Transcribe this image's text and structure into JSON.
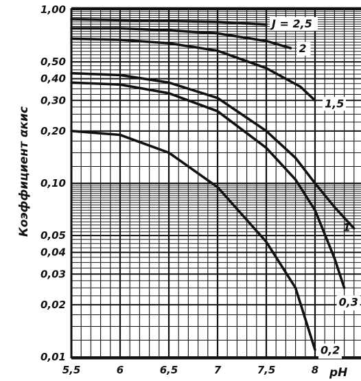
{
  "chart_data": {
    "type": "line",
    "title": "",
    "xlabel": "pH",
    "ylabel": "Коэффициент αкис",
    "xlim": [
      5.5,
      8.5
    ],
    "ylim": [
      0.01,
      1.0
    ],
    "y_scale": "log",
    "grid": true,
    "x_ticks": [
      5.5,
      6,
      6.5,
      7,
      7.5,
      8
    ],
    "x_tick_labels": [
      "5,5",
      "6",
      "6,5",
      "7",
      "7,5",
      "8"
    ],
    "y_ticks": [
      0.01,
      0.02,
      0.03,
      0.04,
      0.05,
      0.1,
      0.2,
      0.3,
      0.4,
      0.5,
      1.0
    ],
    "y_tick_labels": [
      "0,01",
      "0,02",
      "0,03",
      "0,04",
      "0,05",
      "0,10",
      "0,20",
      "0,30",
      "0,40",
      "0,50",
      "1,00"
    ],
    "series": [
      {
        "name": "J = 2,5",
        "x": [
          5.5,
          6.0,
          6.5,
          7.0,
          7.5
        ],
        "y": [
          0.88,
          0.87,
          0.86,
          0.85,
          0.82
        ]
      },
      {
        "name": "2",
        "x": [
          5.5,
          6.0,
          6.5,
          7.0,
          7.5,
          7.75
        ],
        "y": [
          0.78,
          0.78,
          0.76,
          0.73,
          0.66,
          0.6
        ]
      },
      {
        "name": "1,5",
        "x": [
          5.5,
          6.0,
          6.5,
          7.0,
          7.5,
          7.85,
          8.0
        ],
        "y": [
          0.68,
          0.67,
          0.64,
          0.58,
          0.46,
          0.36,
          0.3
        ]
      },
      {
        "name": "1",
        "x": [
          5.5,
          6.0,
          6.5,
          7.0,
          7.5,
          7.8,
          8.0,
          8.2,
          8.4
        ],
        "y": [
          0.43,
          0.42,
          0.38,
          0.31,
          0.2,
          0.14,
          0.1,
          0.073,
          0.055
        ]
      },
      {
        "name": "0,3",
        "x": [
          5.5,
          6.0,
          6.5,
          7.0,
          7.5,
          7.8,
          8.0,
          8.2,
          8.3
        ],
        "y": [
          0.38,
          0.37,
          0.33,
          0.26,
          0.16,
          0.105,
          0.07,
          0.037,
          0.025
        ]
      },
      {
        "name": "0,2",
        "x": [
          5.5,
          6.0,
          6.5,
          7.0,
          7.5,
          7.8,
          8.0
        ],
        "y": [
          0.2,
          0.19,
          0.15,
          0.095,
          0.046,
          0.025,
          0.011
        ]
      }
    ]
  }
}
